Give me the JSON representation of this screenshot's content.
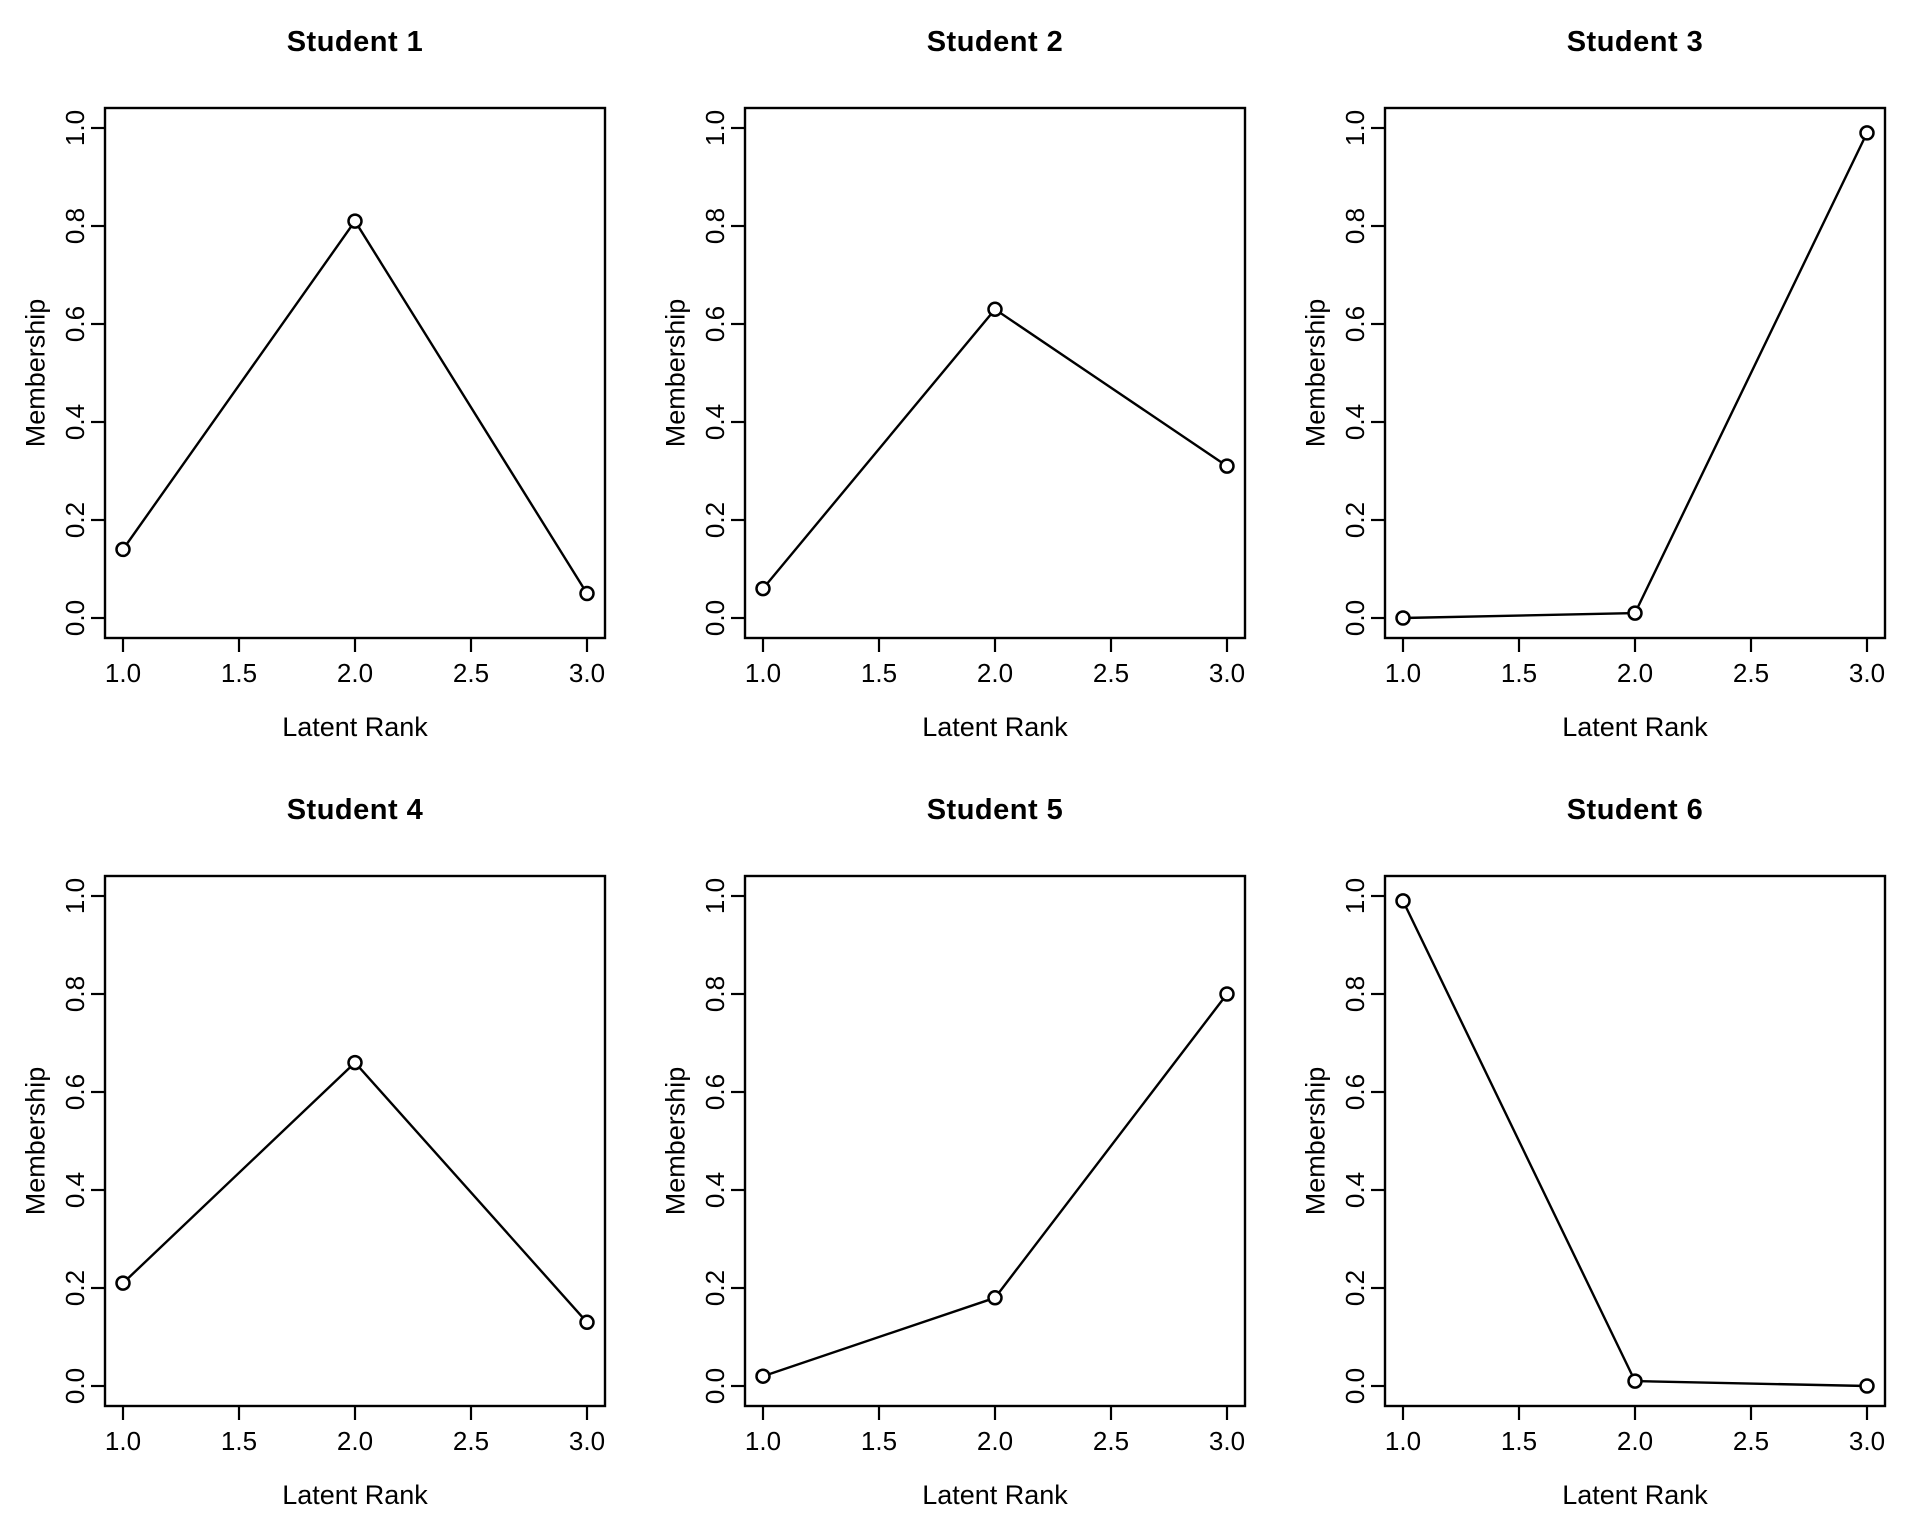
{
  "page": {
    "background": "#ffffff",
    "text_color": "#000000"
  },
  "chart_data": [
    {
      "type": "line",
      "title": "Student 1",
      "xlabel": "Latent Rank",
      "ylabel": "Membership",
      "x": [
        1,
        2,
        3
      ],
      "y": [
        0.14,
        0.81,
        0.05
      ],
      "xtick_labels": [
        "1.0",
        "1.5",
        "2.0",
        "2.5",
        "3.0"
      ],
      "xtick_values": [
        1,
        1.5,
        2,
        2.5,
        3
      ],
      "ytick_labels": [
        "0.0",
        "0.2",
        "0.4",
        "0.6",
        "0.8",
        "1.0"
      ],
      "ytick_values": [
        0,
        0.2,
        0.4,
        0.6,
        0.8,
        1
      ],
      "xlim": [
        0.92,
        3.08
      ],
      "ylim": [
        -0.04,
        1.04
      ],
      "marker": "open-circle",
      "line_color": "#000000",
      "background": "#ffffff",
      "grid": false
    },
    {
      "type": "line",
      "title": "Student 2",
      "xlabel": "Latent Rank",
      "ylabel": "Membership",
      "x": [
        1,
        2,
        3
      ],
      "y": [
        0.06,
        0.63,
        0.31
      ],
      "xtick_labels": [
        "1.0",
        "1.5",
        "2.0",
        "2.5",
        "3.0"
      ],
      "xtick_values": [
        1,
        1.5,
        2,
        2.5,
        3
      ],
      "ytick_labels": [
        "0.0",
        "0.2",
        "0.4",
        "0.6",
        "0.8",
        "1.0"
      ],
      "ytick_values": [
        0,
        0.2,
        0.4,
        0.6,
        0.8,
        1
      ],
      "xlim": [
        0.92,
        3.08
      ],
      "ylim": [
        -0.04,
        1.04
      ],
      "marker": "open-circle",
      "line_color": "#000000",
      "background": "#ffffff",
      "grid": false
    },
    {
      "type": "line",
      "title": "Student 3",
      "xlabel": "Latent Rank",
      "ylabel": "Membership",
      "x": [
        1,
        2,
        3
      ],
      "y": [
        0.0,
        0.01,
        0.99
      ],
      "xtick_labels": [
        "1.0",
        "1.5",
        "2.0",
        "2.5",
        "3.0"
      ],
      "xtick_values": [
        1,
        1.5,
        2,
        2.5,
        3
      ],
      "ytick_labels": [
        "0.0",
        "0.2",
        "0.4",
        "0.6",
        "0.8",
        "1.0"
      ],
      "ytick_values": [
        0,
        0.2,
        0.4,
        0.6,
        0.8,
        1
      ],
      "xlim": [
        0.92,
        3.08
      ],
      "ylim": [
        -0.04,
        1.04
      ],
      "marker": "open-circle",
      "line_color": "#000000",
      "background": "#ffffff",
      "grid": false
    },
    {
      "type": "line",
      "title": "Student 4",
      "xlabel": "Latent Rank",
      "ylabel": "Membership",
      "x": [
        1,
        2,
        3
      ],
      "y": [
        0.21,
        0.66,
        0.13
      ],
      "xtick_labels": [
        "1.0",
        "1.5",
        "2.0",
        "2.5",
        "3.0"
      ],
      "xtick_values": [
        1,
        1.5,
        2,
        2.5,
        3
      ],
      "ytick_labels": [
        "0.0",
        "0.2",
        "0.4",
        "0.6",
        "0.8",
        "1.0"
      ],
      "ytick_values": [
        0,
        0.2,
        0.4,
        0.6,
        0.8,
        1
      ],
      "xlim": [
        0.92,
        3.08
      ],
      "ylim": [
        -0.04,
        1.04
      ],
      "marker": "open-circle",
      "line_color": "#000000",
      "background": "#ffffff",
      "grid": false
    },
    {
      "type": "line",
      "title": "Student 5",
      "xlabel": "Latent Rank",
      "ylabel": "Membership",
      "x": [
        1,
        2,
        3
      ],
      "y": [
        0.02,
        0.18,
        0.8
      ],
      "xtick_labels": [
        "1.0",
        "1.5",
        "2.0",
        "2.5",
        "3.0"
      ],
      "xtick_values": [
        1,
        1.5,
        2,
        2.5,
        3
      ],
      "ytick_labels": [
        "0.0",
        "0.2",
        "0.4",
        "0.6",
        "0.8",
        "1.0"
      ],
      "ytick_values": [
        0,
        0.2,
        0.4,
        0.6,
        0.8,
        1
      ],
      "xlim": [
        0.92,
        3.08
      ],
      "ylim": [
        -0.04,
        1.04
      ],
      "marker": "open-circle",
      "line_color": "#000000",
      "background": "#ffffff",
      "grid": false
    },
    {
      "type": "line",
      "title": "Student 6",
      "xlabel": "Latent Rank",
      "ylabel": "Membership",
      "x": [
        1,
        2,
        3
      ],
      "y": [
        0.99,
        0.01,
        0.0
      ],
      "xtick_labels": [
        "1.0",
        "1.5",
        "2.0",
        "2.5",
        "3.0"
      ],
      "xtick_values": [
        1,
        1.5,
        2,
        2.5,
        3
      ],
      "ytick_labels": [
        "0.0",
        "0.2",
        "0.4",
        "0.6",
        "0.8",
        "1.0"
      ],
      "ytick_values": [
        0,
        0.2,
        0.4,
        0.6,
        0.8,
        1
      ],
      "xlim": [
        0.92,
        3.08
      ],
      "ylim": [
        -0.04,
        1.04
      ],
      "marker": "open-circle",
      "line_color": "#000000",
      "background": "#ffffff",
      "grid": false
    }
  ]
}
